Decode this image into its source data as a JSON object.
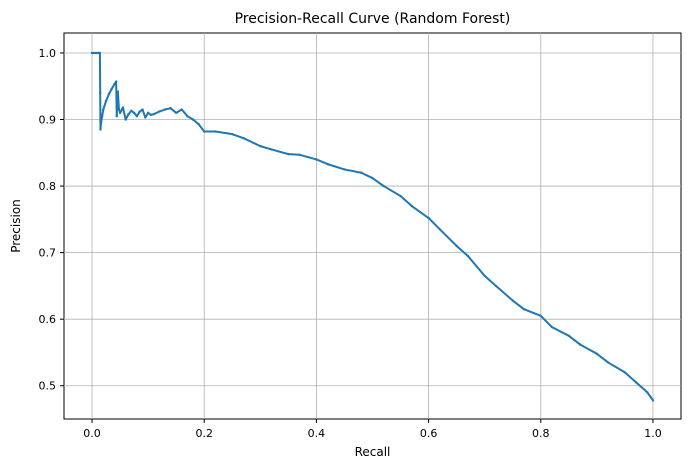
{
  "chart_data": {
    "type": "line",
    "title": "Precision-Recall Curve (Random Forest)",
    "xlabel": "Recall",
    "ylabel": "Precision",
    "xlim": [
      -0.05,
      1.05
    ],
    "ylim": [
      0.45,
      1.03
    ],
    "xticks": [
      0.0,
      0.2,
      0.4,
      0.6,
      0.8,
      1.0
    ],
    "yticks": [
      0.5,
      0.6,
      0.7,
      0.8,
      0.9,
      1.0
    ],
    "xtick_labels": [
      "0.0",
      "0.2",
      "0.4",
      "0.6",
      "0.8",
      "1.0"
    ],
    "ytick_labels": [
      "0.5",
      "0.6",
      "0.7",
      "0.8",
      "0.9",
      "1.0"
    ],
    "grid": true,
    "series": [
      {
        "name": "",
        "color": "#1f77b4",
        "x": [
          0.0,
          0.005,
          0.012,
          0.014,
          0.0145,
          0.015,
          0.016,
          0.018,
          0.02,
          0.025,
          0.03,
          0.035,
          0.04,
          0.043,
          0.044,
          0.046,
          0.048,
          0.05,
          0.055,
          0.06,
          0.065,
          0.07,
          0.075,
          0.08,
          0.085,
          0.09,
          0.095,
          0.1,
          0.105,
          0.11,
          0.12,
          0.13,
          0.14,
          0.15,
          0.16,
          0.17,
          0.18,
          0.19,
          0.2,
          0.22,
          0.25,
          0.27,
          0.3,
          0.32,
          0.35,
          0.37,
          0.4,
          0.42,
          0.45,
          0.48,
          0.5,
          0.52,
          0.55,
          0.57,
          0.6,
          0.62,
          0.65,
          0.67,
          0.7,
          0.72,
          0.75,
          0.77,
          0.8,
          0.82,
          0.85,
          0.87,
          0.9,
          0.92,
          0.95,
          0.97,
          0.99,
          1.0
        ],
        "y": [
          1.0,
          1.0,
          1.0,
          1.0,
          0.94,
          0.885,
          0.895,
          0.905,
          0.915,
          0.928,
          0.938,
          0.946,
          0.953,
          0.957,
          0.905,
          0.942,
          0.915,
          0.91,
          0.918,
          0.9,
          0.908,
          0.913,
          0.91,
          0.905,
          0.912,
          0.915,
          0.903,
          0.91,
          0.907,
          0.908,
          0.912,
          0.915,
          0.917,
          0.91,
          0.915,
          0.905,
          0.9,
          0.893,
          0.882,
          0.882,
          0.878,
          0.872,
          0.86,
          0.855,
          0.848,
          0.847,
          0.84,
          0.833,
          0.825,
          0.82,
          0.812,
          0.8,
          0.785,
          0.77,
          0.752,
          0.735,
          0.71,
          0.695,
          0.665,
          0.65,
          0.628,
          0.615,
          0.605,
          0.588,
          0.575,
          0.562,
          0.548,
          0.535,
          0.52,
          0.505,
          0.49,
          0.478
        ]
      }
    ]
  }
}
